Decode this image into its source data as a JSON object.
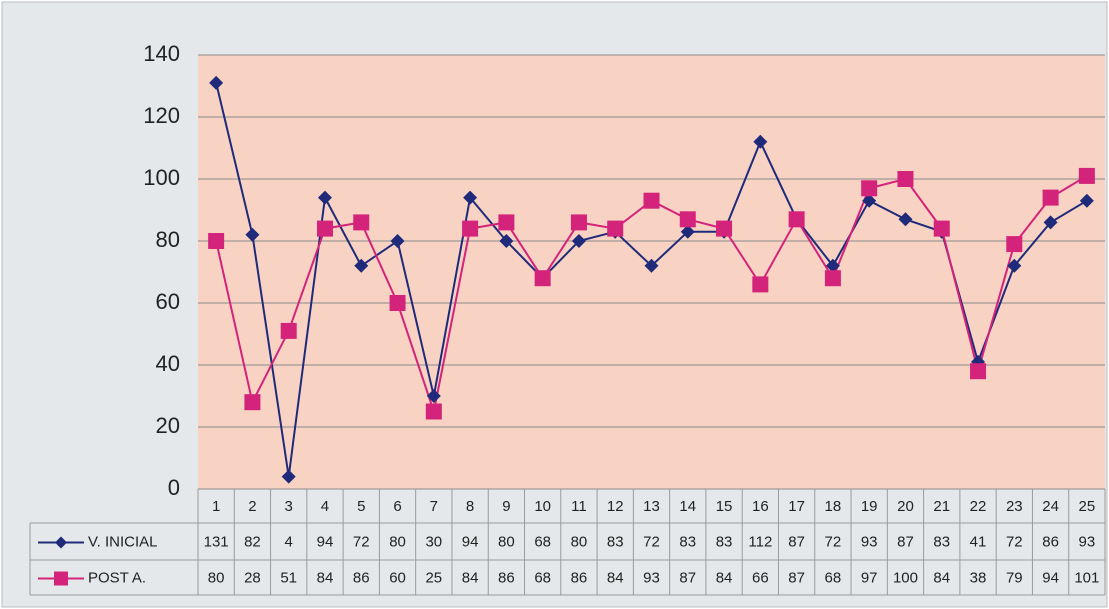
{
  "chart_data": {
    "type": "line",
    "categories": [
      "1",
      "2",
      "3",
      "4",
      "5",
      "6",
      "7",
      "8",
      "9",
      "10",
      "11",
      "12",
      "13",
      "14",
      "15",
      "16",
      "17",
      "18",
      "19",
      "20",
      "21",
      "22",
      "23",
      "24",
      "25"
    ],
    "series": [
      {
        "name": "V. INICIAL",
        "color": "#1f2a7a",
        "marker": "diamond",
        "values": [
          131,
          82,
          4,
          94,
          72,
          80,
          30,
          94,
          80,
          68,
          80,
          83,
          72,
          83,
          83,
          112,
          87,
          72,
          93,
          87,
          83,
          41,
          72,
          86,
          93
        ]
      },
      {
        "name": "POST A.",
        "color": "#d4237a",
        "marker": "square",
        "values": [
          80,
          28,
          51,
          84,
          86,
          60,
          25,
          84,
          86,
          68,
          86,
          84,
          93,
          87,
          84,
          66,
          87,
          68,
          97,
          100,
          84,
          38,
          79,
          94,
          101
        ]
      }
    ],
    "ylim": [
      0,
      140
    ],
    "yticks": [
      0,
      20,
      40,
      60,
      80,
      100,
      120,
      140
    ],
    "grid": true,
    "data_table": true
  }
}
